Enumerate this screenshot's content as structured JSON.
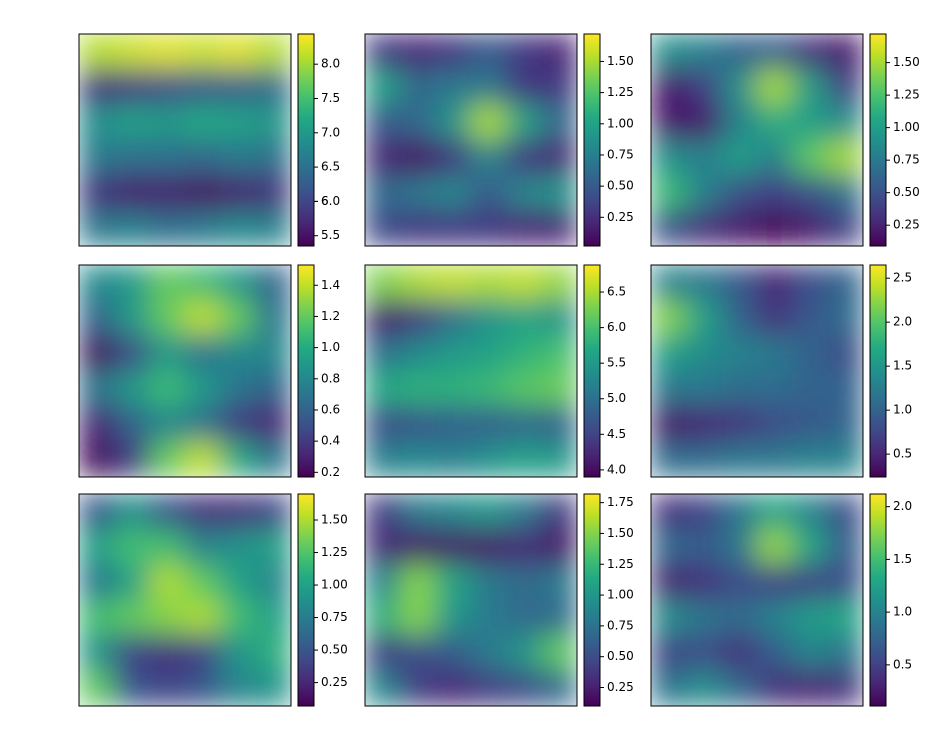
{
  "chart_data": [
    {
      "type": "heatmap",
      "colormap": "viridis",
      "zlim": [
        5.35,
        8.44
      ],
      "colorbar_ticks": [
        5.5,
        6,
        {
          "value": 6.0,
          "label": "6.0"
        },
        6.5,
        {
          "value": 7.0,
          "label": "7.0"
        },
        7.5,
        {
          "value": 8.0,
          "label": "8.0"
        }
      ],
      "z": [
        [
          8.1,
          8.2,
          8.3,
          8.2,
          8.3,
          8.1
        ],
        [
          5.8,
          5.9,
          6.1,
          6.2,
          6.3,
          6.4
        ],
        [
          6.9,
          7.1,
          7.0,
          7.2,
          7.1,
          7.0
        ],
        [
          6.6,
          6.5,
          6.5,
          6.4,
          6.6,
          6.5
        ],
        [
          5.8,
          5.6,
          5.6,
          5.5,
          5.6,
          5.8
        ],
        [
          6.6,
          6.7,
          6.5,
          6.6,
          6.8,
          6.7
        ]
      ]
    },
    {
      "type": "heatmap",
      "colormap": "viridis",
      "zlim": [
        0.02,
        1.72
      ],
      "colorbar_ticks": [
        0.25,
        {
          "value": 0.5,
          "label": "0.50"
        },
        0.75,
        {
          "value": 1.0,
          "label": "1.00"
        },
        1.25,
        {
          "value": 1.5,
          "label": "1.50"
        }
      ],
      "z": [
        [
          0.3,
          0.2,
          0.3,
          0.5,
          0.3,
          0.2
        ],
        [
          1.0,
          0.6,
          0.7,
          0.7,
          0.3,
          0.3
        ],
        [
          0.5,
          0.6,
          0.9,
          1.5,
          1.0,
          0.6
        ],
        [
          0.2,
          0.1,
          0.3,
          0.8,
          0.3,
          0.2
        ],
        [
          0.6,
          0.7,
          0.8,
          0.5,
          0.8,
          0.9
        ],
        [
          0.4,
          0.3,
          0.3,
          0.3,
          0.2,
          0.2
        ]
      ]
    },
    {
      "type": "heatmap",
      "colormap": "viridis",
      "zlim": [
        0.09,
        1.72
      ],
      "colorbar_ticks": [
        0.25,
        {
          "value": 0.5,
          "label": "0.50"
        },
        0.75,
        {
          "value": 1.0,
          "label": "1.00"
        },
        1.25,
        {
          "value": 1.5,
          "label": "1.50"
        }
      ],
      "z": [
        [
          0.9,
          0.8,
          0.6,
          0.6,
          0.3,
          0.2
        ],
        [
          0.2,
          0.4,
          0.9,
          1.5,
          1.0,
          0.4
        ],
        [
          0.2,
          0.2,
          0.8,
          1.1,
          1.0,
          0.9
        ],
        [
          0.9,
          0.8,
          1.0,
          0.8,
          1.3,
          1.5
        ],
        [
          1.2,
          0.8,
          0.5,
          0.4,
          0.5,
          0.7
        ],
        [
          0.5,
          0.3,
          0.2,
          0.1,
          0.2,
          0.4
        ]
      ]
    },
    {
      "type": "heatmap",
      "colormap": "viridis",
      "zlim": [
        0.17,
        1.53
      ],
      "colorbar_ticks": [
        0.2,
        0.4,
        0.6,
        0.8,
        {
          "value": 1.0,
          "label": "1.0"
        },
        1.2,
        1.4
      ],
      "z": [
        [
          0.8,
          0.9,
          1.2,
          1.1,
          0.9,
          0.6
        ],
        [
          0.6,
          0.9,
          1.2,
          1.4,
          1.2,
          0.7
        ],
        [
          0.2,
          0.5,
          0.9,
          0.7,
          0.8,
          0.8
        ],
        [
          0.7,
          0.9,
          1.1,
          0.9,
          0.7,
          0.6
        ],
        [
          0.3,
          0.6,
          0.8,
          0.7,
          0.4,
          0.3
        ],
        [
          0.2,
          0.4,
          1.2,
          1.4,
          1.0,
          0.7
        ]
      ]
    },
    {
      "type": "heatmap",
      "colormap": "viridis",
      "zlim": [
        3.9,
        6.88
      ],
      "colorbar_ticks": [
        {
          "value": 4.0,
          "label": "4.0"
        },
        4.5,
        {
          "value": 5.0,
          "label": "5.0"
        },
        5.5,
        {
          "value": 6.0,
          "label": "6.0"
        },
        6.5
      ],
      "z": [
        [
          6.3,
          6.5,
          6.6,
          6.5,
          6.6,
          6.4
        ],
        [
          4.1,
          4.4,
          5.0,
          5.4,
          5.6,
          5.4
        ],
        [
          5.0,
          5.3,
          5.5,
          5.6,
          5.8,
          6.0
        ],
        [
          5.7,
          5.8,
          5.8,
          5.9,
          6.1,
          6.2
        ],
        [
          4.6,
          4.7,
          4.8,
          4.8,
          4.9,
          4.8
        ],
        [
          5.2,
          5.3,
          5.2,
          5.4,
          5.6,
          5.5
        ]
      ]
    },
    {
      "type": "heatmap",
      "colormap": "viridis",
      "zlim": [
        0.24,
        2.65
      ],
      "colorbar_ticks": [
        0.5,
        {
          "value": 1.0,
          "label": "1.0"
        },
        1.5,
        {
          "value": 2.0,
          "label": "2.0"
        },
        2.5
      ],
      "z": [
        [
          1.3,
          1.2,
          0.9,
          0.5,
          0.8,
          1.0
        ],
        [
          2.2,
          1.6,
          1.0,
          0.6,
          0.9,
          1.1
        ],
        [
          1.6,
          1.4,
          1.3,
          1.2,
          1.0,
          0.8
        ],
        [
          1.2,
          1.2,
          1.1,
          1.1,
          1.0,
          1.0
        ],
        [
          0.4,
          0.5,
          0.6,
          0.8,
          0.9,
          1.0
        ],
        [
          1.1,
          1.1,
          1.2,
          1.2,
          1.3,
          1.3
        ]
      ]
    },
    {
      "type": "heatmap",
      "colormap": "viridis",
      "zlim": [
        0.07,
        1.7
      ],
      "colorbar_ticks": [
        0.25,
        {
          "value": 0.5,
          "label": "0.50"
        },
        0.75,
        {
          "value": 1.0,
          "label": "1.00"
        },
        1.25,
        {
          "value": 1.5,
          "label": "1.50"
        }
      ],
      "z": [
        [
          0.5,
          0.9,
          0.5,
          0.3,
          0.3,
          0.4
        ],
        [
          1.0,
          1.2,
          1.2,
          0.8,
          0.9,
          1.0
        ],
        [
          0.7,
          1.0,
          1.5,
          1.3,
          1.0,
          0.8
        ],
        [
          1.2,
          1.3,
          1.4,
          1.5,
          1.2,
          1.0
        ],
        [
          0.9,
          0.4,
          0.3,
          0.4,
          0.9,
          1.1
        ],
        [
          1.3,
          0.5,
          0.4,
          0.5,
          0.8,
          0.9
        ]
      ]
    },
    {
      "type": "heatmap",
      "colormap": "viridis",
      "zlim": [
        0.1,
        1.82
      ],
      "colorbar_ticks": [
        0.25,
        {
          "value": 0.5,
          "label": "0.50"
        },
        0.75,
        {
          "value": 1.0,
          "label": "1.00"
        },
        1.25,
        {
          "value": 1.5,
          "label": "1.50"
        },
        1.75
      ],
      "z": [
        [
          0.4,
          0.8,
          0.9,
          1.0,
          0.8,
          0.4
        ],
        [
          0.3,
          0.2,
          0.2,
          0.2,
          0.3,
          0.2
        ],
        [
          0.9,
          1.5,
          1.1,
          0.8,
          0.7,
          0.8
        ],
        [
          1.2,
          1.5,
          1.0,
          0.8,
          0.7,
          0.7
        ],
        [
          0.4,
          0.5,
          0.6,
          0.8,
          1.0,
          1.4
        ],
        [
          0.9,
          0.4,
          0.3,
          0.4,
          0.5,
          0.7
        ]
      ]
    },
    {
      "type": "heatmap",
      "colormap": "viridis",
      "zlim": [
        0.11,
        2.12
      ],
      "colorbar_ticks": [
        0.5,
        {
          "value": 1.0,
          "label": "1.0"
        },
        1.5,
        {
          "value": 2.0,
          "label": "2.0"
        }
      ],
      "z": [
        [
          0.4,
          0.5,
          0.9,
          1.3,
          1.0,
          0.6
        ],
        [
          0.8,
          0.7,
          0.9,
          1.8,
          1.3,
          0.7
        ],
        [
          0.3,
          0.4,
          0.6,
          0.5,
          0.5,
          0.6
        ],
        [
          1.1,
          0.9,
          0.8,
          1.0,
          1.2,
          1.3
        ],
        [
          0.5,
          0.6,
          0.4,
          0.7,
          1.0,
          0.9
        ],
        [
          0.9,
          1.1,
          0.8,
          0.4,
          0.3,
          0.4
        ]
      ]
    }
  ]
}
